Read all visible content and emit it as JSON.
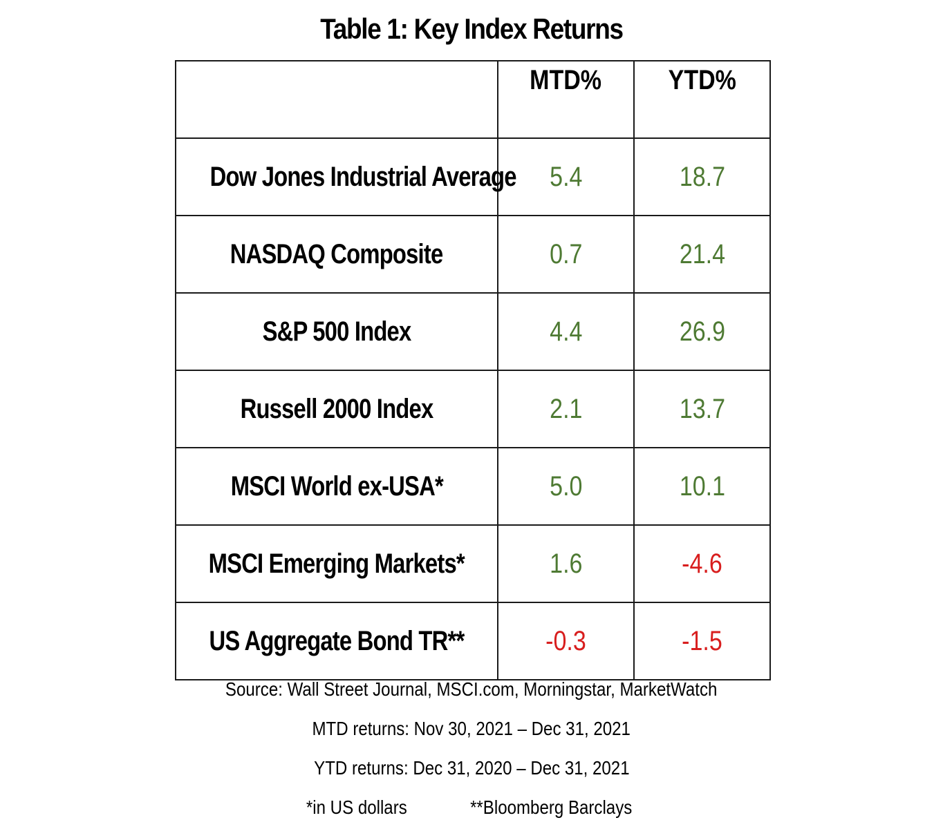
{
  "title": "Table 1: Key Index Returns",
  "chart_data": {
    "type": "table",
    "title": "Table 1: Key Index Returns",
    "columns": [
      "",
      "MTD%",
      "YTD%"
    ],
    "rows": [
      {
        "name": "Dow Jones Industrial Average",
        "mtd": "5.4",
        "ytd": "18.7"
      },
      {
        "name": "NASDAQ Composite",
        "mtd": "0.7",
        "ytd": "21.4"
      },
      {
        "name": "S&P 500 Index",
        "mtd": "4.4",
        "ytd": "26.9"
      },
      {
        "name": "Russell 2000 Index",
        "mtd": "2.1",
        "ytd": "13.7"
      },
      {
        "name": "MSCI World ex-USA*",
        "mtd": "5.0",
        "ytd": "10.1"
      },
      {
        "name": "MSCI Emerging Markets*",
        "mtd": "1.6",
        "ytd": "-4.6"
      },
      {
        "name": "US Aggregate Bond TR**",
        "mtd": "-0.3",
        "ytd": "-1.5"
      }
    ],
    "colors": {
      "positive": "#4e7a33",
      "negative": "#d81e1e"
    }
  },
  "notes": {
    "source": "Source: Wall Street Journal, MSCI.com, Morningstar, MarketWatch",
    "mtd_period": "MTD returns: Nov 30, 2021 – Dec 31, 2021",
    "ytd_period": "YTD returns: Dec 31, 2020 – Dec 31, 2021",
    "footnote_1": "*in US dollars",
    "footnote_2": "**Bloomberg Barclays"
  }
}
